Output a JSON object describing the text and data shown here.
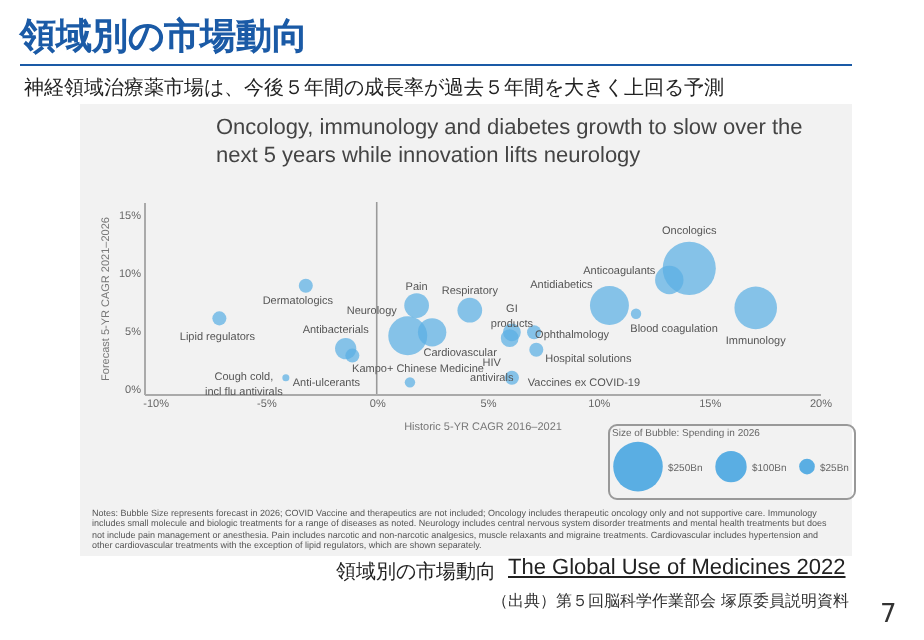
{
  "chart_data": {
    "type": "bubble",
    "title": "Oncology, immunology and diabetes growth to slow over the next 5 years while innovation lifts neurology",
    "subtitle": "神経領域治療薬市場は、今後５年間の成長率が過去５年間を大きく上回る予測",
    "xlabel": "Historic 5-YR CAGR 2016–2021",
    "ylabel": "Forecast 5-YR CAGR 2021–2026",
    "legend_title": "Size of Bubble: Spending in 2026",
    "xlim": [
      -10.5,
      20
    ],
    "ylim": [
      -0.5,
      16
    ],
    "xticks": [
      {
        "value": -10,
        "label": "-10%"
      },
      {
        "value": -5,
        "label": "-5%"
      },
      {
        "value": 0,
        "label": "0%"
      },
      {
        "value": 5,
        "label": "5%"
      },
      {
        "value": 10,
        "label": "10%"
      },
      {
        "value": 15,
        "label": "15%"
      },
      {
        "value": 20,
        "label": "20%"
      }
    ],
    "yticks": [
      {
        "value": 0,
        "label": "0%"
      },
      {
        "value": 5,
        "label": "5%"
      },
      {
        "value": 10,
        "label": "10%"
      },
      {
        "value": 15,
        "label": "15%"
      }
    ],
    "size_legend": [
      {
        "value": 250,
        "label": "$250Bn"
      },
      {
        "value": 100,
        "label": "$100Bn"
      },
      {
        "value": 25,
        "label": "$25Bn"
      }
    ],
    "ref_lines": [
      {
        "axis": "x",
        "value": 0,
        "color": "#9a9a9a"
      }
    ],
    "series": [
      {
        "color": "#5aaee3",
        "x": [
          -7.1,
          -3.2,
          -4.1,
          -1.4,
          -1.1,
          1.4,
          1.8,
          2.5,
          1.5,
          4.2,
          6.1,
          6.0,
          7.1,
          7.2,
          6.1,
          10.5,
          11.7,
          13.2,
          14.1,
          17.1
        ],
        "values": [
          6.0,
          8.8,
          0.9,
          3.4,
          2.8,
          4.5,
          7.1,
          4.8,
          0.5,
          6.7,
          4.8,
          4.3,
          4.8,
          3.3,
          0.9,
          7.1,
          6.4,
          9.3,
          10.3,
          6.9
        ],
        "sizes": [
          20,
          20,
          5,
          46,
          20,
          154,
          62,
          82,
          11,
          62,
          32,
          32,
          20,
          20,
          20,
          154,
          11,
          82,
          287,
          184
        ]
      }
    ],
    "annotations": [
      "領域別の市場動向",
      "Notes: Bubble Size represents forecast in 2026; COVID Vaccine and therapeutics are not included; Oncology includes therapeutic oncology only and not supportive care. Immunology includes small molecule and biologic treatments for a range of diseases as noted. Neurology includes central nervous system disorder treatments and mental health treatments but does not include pain management or anesthesia. Pain includes narcotic and non-narcotic analgesics, muscle relaxants and migraine treatments. Cardiovascular includes hypertension and other cardiovascular treatments with the exception of lipid regulators, which are shown separately.",
      "領域別の市場動向",
      "The Global Use of Medicines 2022",
      "（出典）第５回脳科学作業部会 塚原委員説明資料",
      "7",
      {
        "text": "Lipid regulators",
        "x": -7.1,
        "y": 6.0
      },
      {
        "text": "Dermatologics",
        "x": -3.2,
        "y": 8.8
      },
      {
        "text": "Cough cold,\nincl flu antivirals",
        "x": -4.1,
        "y": 0.9
      },
      {
        "text": "Antibacterials",
        "x": -1.4,
        "y": 3.4
      },
      {
        "text": "Anti-ulcerants",
        "x": -1.1,
        "y": 2.8
      },
      {
        "text": "Neurology",
        "x": 1.4,
        "y": 4.5
      },
      {
        "text": "Pain",
        "x": 1.8,
        "y": 7.1
      },
      {
        "text": "Cardiovascular",
        "x": 2.5,
        "y": 4.8
      },
      {
        "text": "Kampo+ Chinese Medicine",
        "x": 1.5,
        "y": 0.5
      },
      {
        "text": "Respiratory",
        "x": 4.2,
        "y": 6.7
      },
      {
        "text": "GI\nproducts",
        "x": 6.1,
        "y": 4.8
      },
      {
        "text": "HIV\nantivirals",
        "x": 6.0,
        "y": 4.3
      },
      {
        "text": "Ophthalmology",
        "x": 7.1,
        "y": 4.8
      },
      {
        "text": "Hospital solutions",
        "x": 7.2,
        "y": 3.3
      },
      {
        "text": "Vaccines ex COVID-19",
        "x": 6.1,
        "y": 0.9
      },
      {
        "text": "Antidiabetics",
        "x": 10.5,
        "y": 7.1
      },
      {
        "text": "Blood coagulation",
        "x": 11.7,
        "y": 6.4
      },
      {
        "text": "Anticoagulants",
        "x": 13.2,
        "y": 9.3
      },
      {
        "text": "Oncologics",
        "x": 14.1,
        "y": 10.3
      },
      {
        "text": "Immunology",
        "x": 17.1,
        "y": 6.9
      }
    ]
  }
}
